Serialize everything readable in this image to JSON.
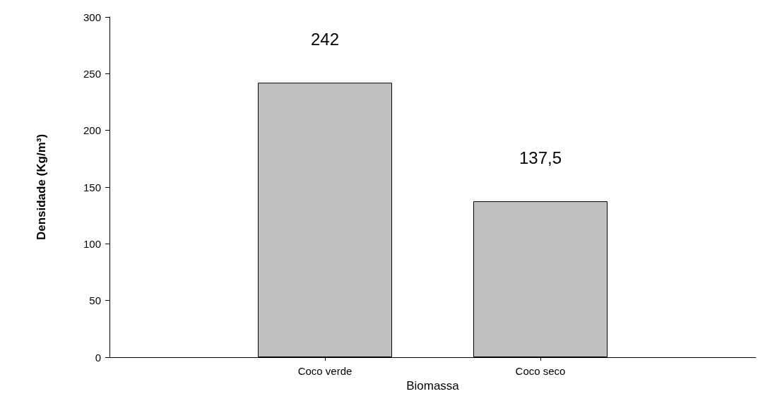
{
  "chart_data": {
    "type": "bar",
    "xlabel": "Biomassa",
    "ylabel": "Densidade (Kg/m³)",
    "categories": [
      null,
      "Coco verde",
      "Coco seco",
      null
    ],
    "values": [
      null,
      242,
      137.5,
      null
    ],
    "value_labels": [
      null,
      "242",
      "137,5",
      null
    ],
    "color": "#c0c0c0",
    "ylim": [
      0,
      300
    ],
    "yticks": [
      0,
      50,
      100,
      150,
      200,
      250,
      300
    ],
    "grid": false
  }
}
